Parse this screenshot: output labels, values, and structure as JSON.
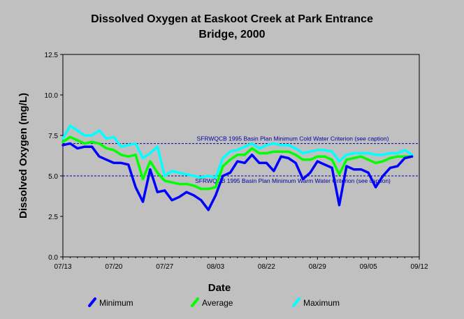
{
  "chart_data": {
    "type": "line",
    "title_line1": "Dissolved Oxygen at Easkoot Creek at Park Entrance",
    "title_line2": "Bridge, 2000",
    "xlabel": "Date",
    "ylabel": "Dissolved Oxygen (mg/L)",
    "x_start": "07/13",
    "x_end": "09/12",
    "ylim": [
      0,
      12.5
    ],
    "y_ticks": [
      "0.0",
      "2.5",
      "5.0",
      "7.5",
      "10.0",
      "12.5"
    ],
    "x_ticks": [
      {
        "day": 0,
        "label": "07/13"
      },
      {
        "day": 7,
        "label": "07/20"
      },
      {
        "day": 14,
        "label": "07/27"
      },
      {
        "day": 21,
        "label": "08/03"
      },
      {
        "day": 28,
        "label": "08/22"
      },
      {
        "day": 35,
        "label": "08/29"
      },
      {
        "day": 42,
        "label": "09/05"
      },
      {
        "day": 49,
        "label": "09/12"
      }
    ],
    "reference_lines": [
      {
        "value": 7.0,
        "label": "SFRWQCB 1995 Basin Plan Minimum Cold Water Criterion (see caption)",
        "color": "#0000a0"
      },
      {
        "value": 5.0,
        "label": "SFRWQCB 1995 Basin Plan Minimum Warm Water Criterion (see caption)",
        "color": "#0000a0"
      }
    ],
    "series": [
      {
        "name": "Minimum",
        "color": "#0000ff",
        "x": [
          0,
          1,
          2,
          3,
          4,
          5,
          6,
          7,
          8,
          9,
          10,
          11,
          12,
          13,
          14,
          15,
          16,
          17,
          18,
          19,
          20,
          21,
          22,
          23,
          24,
          25,
          26,
          27,
          28,
          29,
          30,
          31,
          32,
          33,
          34,
          35,
          36,
          37,
          38,
          39,
          40,
          41,
          42,
          43,
          44,
          45,
          46,
          47,
          48
        ],
        "values": [
          6.9,
          7.0,
          6.7,
          6.8,
          6.8,
          6.2,
          6.0,
          5.8,
          5.8,
          5.7,
          4.3,
          3.4,
          5.4,
          4.0,
          4.1,
          3.5,
          3.7,
          4.0,
          3.8,
          3.5,
          2.9,
          3.8,
          5.0,
          5.2,
          5.9,
          5.8,
          6.3,
          5.8,
          5.8,
          5.3,
          6.2,
          6.1,
          5.8,
          4.8,
          5.2,
          5.9,
          5.7,
          5.5,
          3.2,
          5.6,
          5.4,
          5.4,
          5.2,
          4.3,
          5.0,
          5.5,
          5.6,
          6.1,
          6.2
        ]
      },
      {
        "name": "Average",
        "color": "#00ff00",
        "x": [
          0,
          1,
          2,
          3,
          4,
          5,
          6,
          7,
          8,
          9,
          10,
          11,
          12,
          13,
          14,
          15,
          16,
          17,
          18,
          19,
          20,
          21,
          22,
          23,
          24,
          25,
          26,
          27,
          28,
          29,
          30,
          31,
          32,
          33,
          34,
          35,
          36,
          37,
          38,
          39,
          40,
          41,
          42,
          43,
          44,
          45,
          46,
          47,
          48
        ],
        "values": [
          7.1,
          7.4,
          7.2,
          7.0,
          7.1,
          7.0,
          6.7,
          6.6,
          6.3,
          6.2,
          6.3,
          4.8,
          5.9,
          5.2,
          4.7,
          4.6,
          4.5,
          4.5,
          4.4,
          4.2,
          4.2,
          4.3,
          5.6,
          6.0,
          6.3,
          6.3,
          6.7,
          6.4,
          6.4,
          6.5,
          6.5,
          6.5,
          6.3,
          6.0,
          6.0,
          6.2,
          6.2,
          6.0,
          5.1,
          6.0,
          6.1,
          6.2,
          6.0,
          5.8,
          5.9,
          6.1,
          6.2,
          6.2,
          6.2
        ]
      },
      {
        "name": "Maximum",
        "color": "#00ffff",
        "x": [
          0,
          1,
          2,
          3,
          4,
          5,
          6,
          7,
          8,
          9,
          10,
          11,
          12,
          13,
          14,
          15,
          16,
          17,
          18,
          19,
          20,
          21,
          22,
          23,
          24,
          25,
          26,
          27,
          28,
          29,
          30,
          31,
          32,
          33,
          34,
          35,
          36,
          37,
          38,
          39,
          40,
          41,
          42,
          43,
          44,
          45,
          46,
          47,
          48
        ],
        "values": [
          7.3,
          8.1,
          7.8,
          7.5,
          7.5,
          7.8,
          7.3,
          7.4,
          6.8,
          6.9,
          7.0,
          6.1,
          6.4,
          6.8,
          5.0,
          5.3,
          5.2,
          5.1,
          5.0,
          4.9,
          5.0,
          4.9,
          6.1,
          6.5,
          6.6,
          6.8,
          7.0,
          6.7,
          6.9,
          7.0,
          6.9,
          6.9,
          6.7,
          6.4,
          6.5,
          6.6,
          6.6,
          6.5,
          5.9,
          6.3,
          6.4,
          6.4,
          6.4,
          6.3,
          6.3,
          6.4,
          6.4,
          6.6,
          6.3
        ]
      }
    ],
    "legend_placement": "bottom",
    "background_color": "#c0c0c0",
    "plot_background_color": "#c0c0c0"
  }
}
